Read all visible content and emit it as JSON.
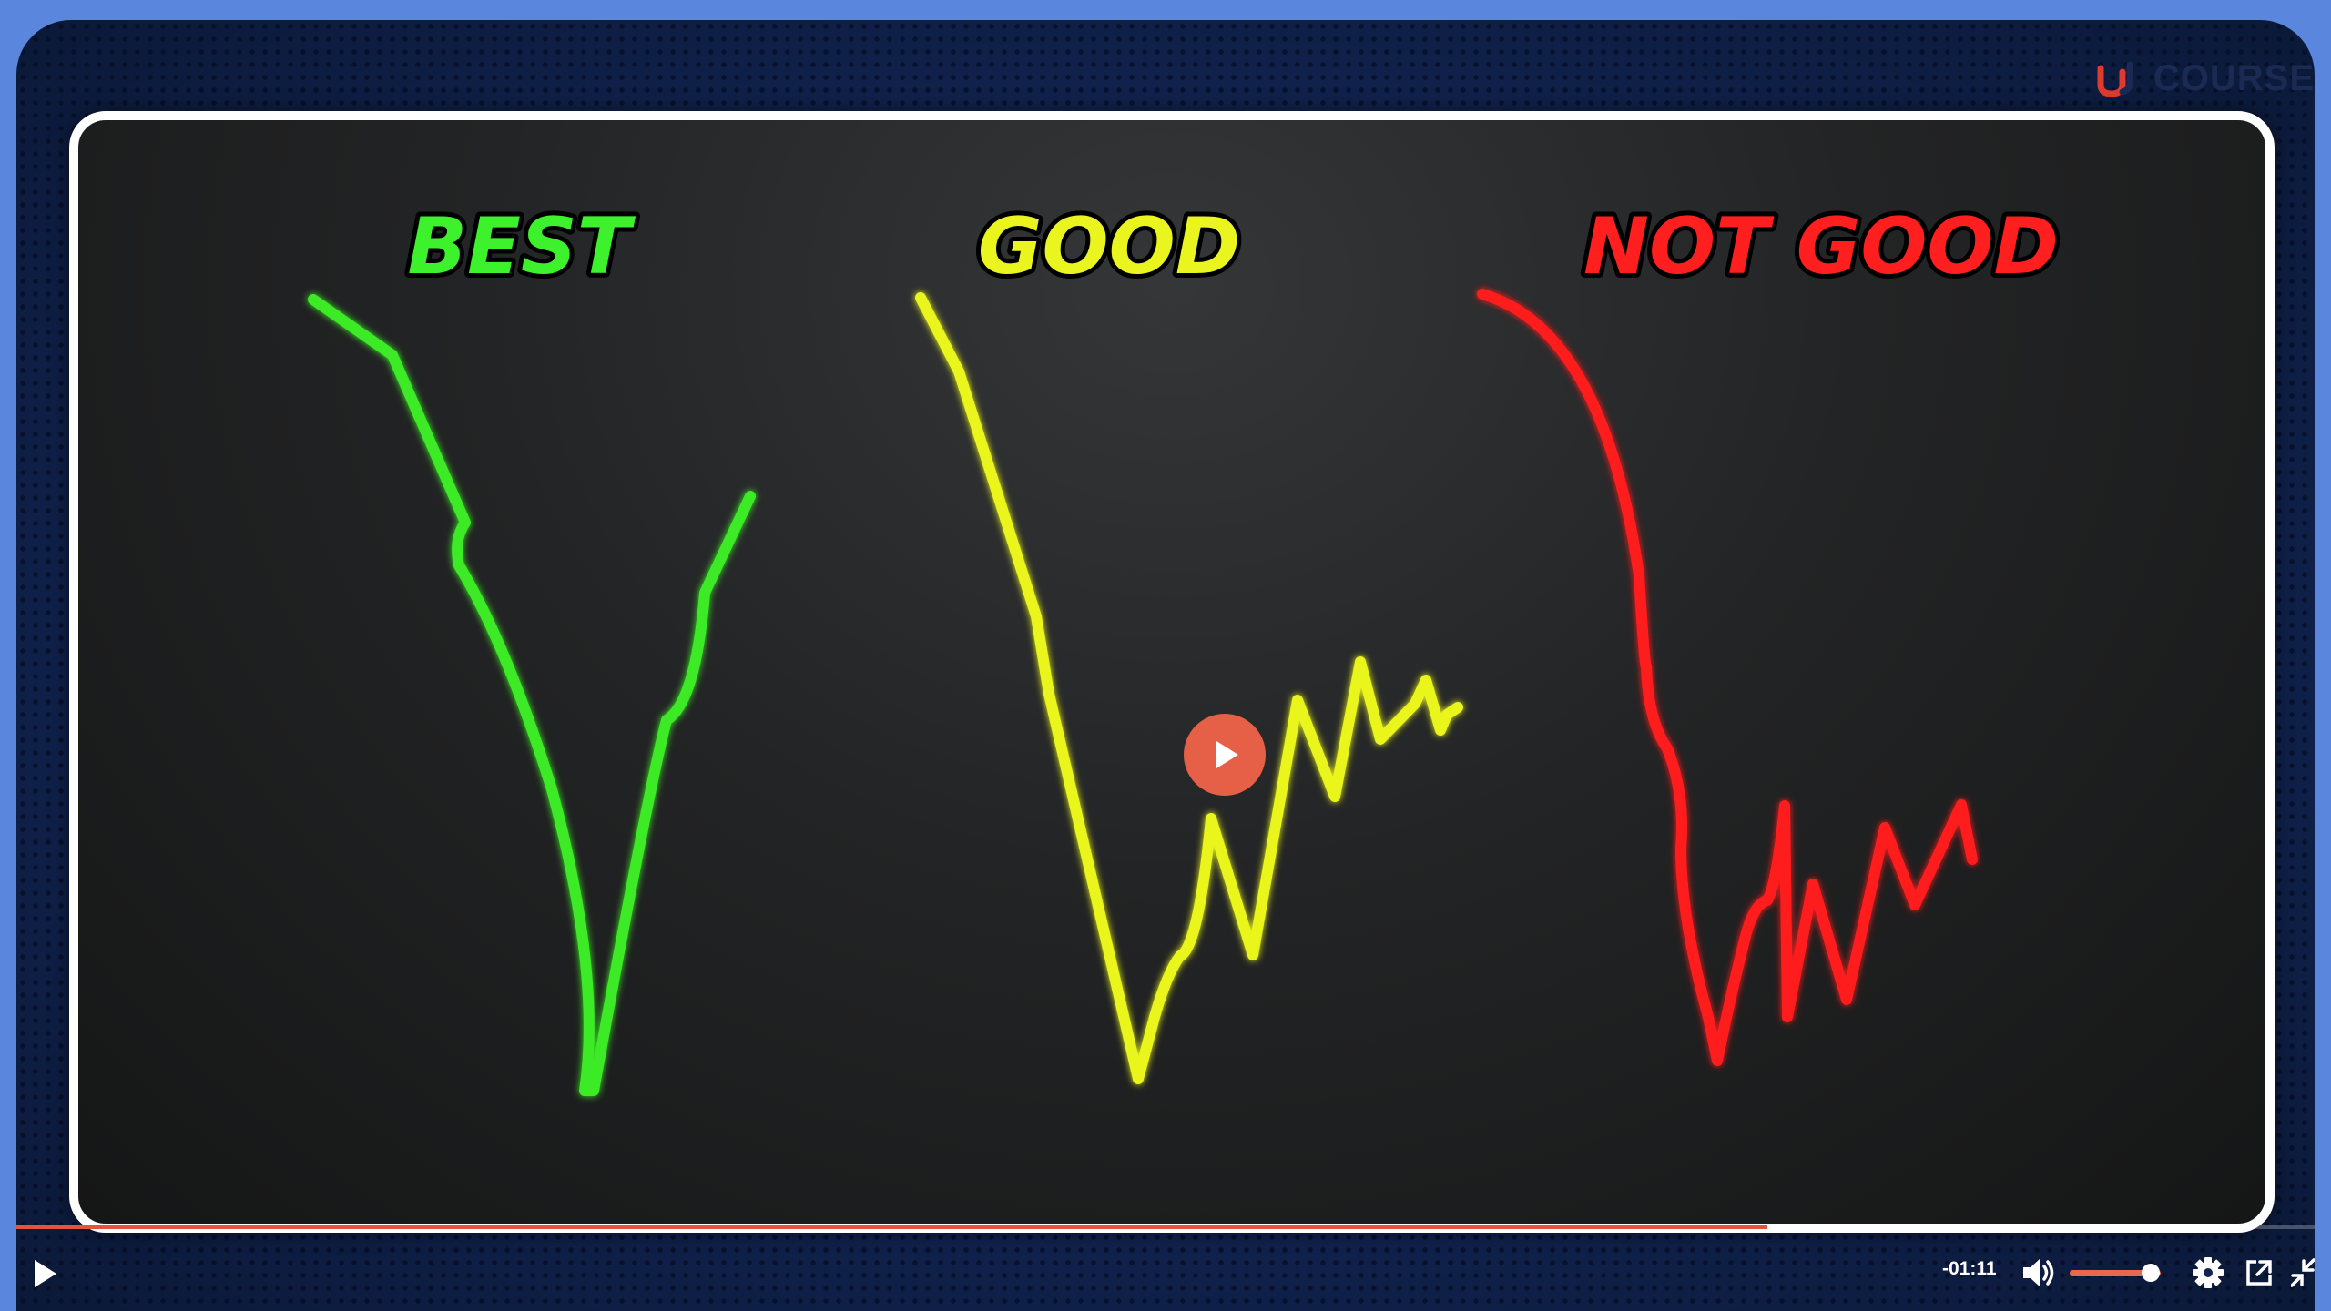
{
  "brand": {
    "name": "COURSE"
  },
  "slide": {
    "labels": [
      {
        "text": "BEST",
        "color": "#3df22c"
      },
      {
        "text": "GOOD",
        "color": "#eaf51f"
      },
      {
        "text": "NOT GOOD",
        "color": "#ff1f1f"
      }
    ],
    "curve_colors": {
      "best": "#3cea26",
      "good": "#eaf51f",
      "not_good": "#ff1f1f"
    }
  },
  "player": {
    "time_remaining": "-01:11",
    "progress_fraction": 0.762,
    "volume_fraction": 0.85,
    "accent_color": "#e5533c",
    "icons": [
      "play-icon",
      "volume-icon",
      "settings-gear-icon",
      "popout-icon",
      "exit-fullscreen-icon"
    ]
  }
}
